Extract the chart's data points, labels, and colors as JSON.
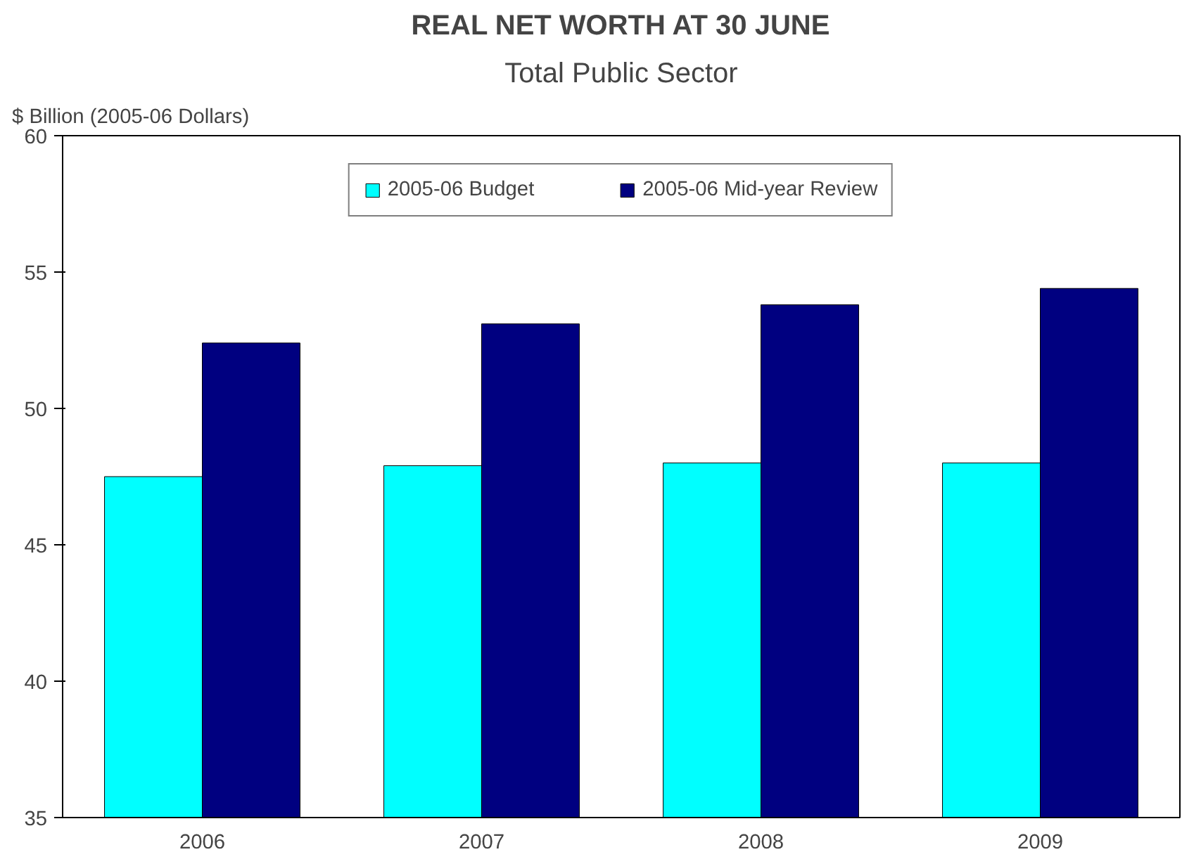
{
  "chart_data": {
    "type": "bar",
    "title": "REAL NET WORTH AT 30 JUNE",
    "subtitle": "Total Public Sector",
    "ylabel": "$ Billion (2005-06 Dollars)",
    "categories": [
      "2006",
      "2007",
      "2008",
      "2009"
    ],
    "series": [
      {
        "name": "2005-06 Budget",
        "color": "#00ffff",
        "values": [
          47.5,
          47.9,
          48.0,
          48.0
        ]
      },
      {
        "name": "2005-06 Mid-year Review",
        "color": "#000080",
        "values": [
          52.4,
          53.1,
          53.8,
          54.4
        ]
      }
    ],
    "ylim": [
      35,
      60
    ],
    "yticks": [
      35,
      40,
      45,
      50,
      55,
      60
    ],
    "grid": false,
    "legend": "top"
  }
}
